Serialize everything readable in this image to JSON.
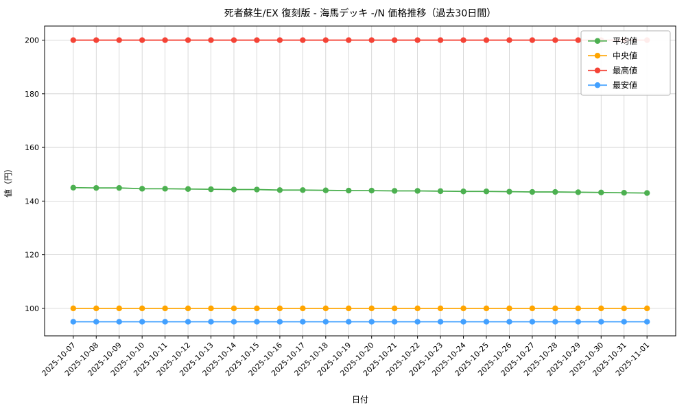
{
  "chart_data": {
    "type": "line",
    "title": "死者蘇生/EX 復刻版 - 海馬デッキ -/N 価格推移（過去30日間）",
    "xlabel": "日付",
    "ylabel": "値（円）",
    "x": [
      "2025-10-07",
      "2025-10-08",
      "2025-10-09",
      "2025-10-10",
      "2025-10-11",
      "2025-10-12",
      "2025-10-13",
      "2025-10-14",
      "2025-10-15",
      "2025-10-16",
      "2025-10-17",
      "2025-10-18",
      "2025-10-19",
      "2025-10-20",
      "2025-10-21",
      "2025-10-22",
      "2025-10-23",
      "2025-10-24",
      "2025-10-25",
      "2025-10-26",
      "2025-10-27",
      "2025-10-28",
      "2025-10-29",
      "2025-10-30",
      "2025-10-31",
      "2025-11-01"
    ],
    "series": [
      {
        "name": "平均値",
        "color": "#4cb050",
        "values": [
          145.0,
          144.9,
          144.9,
          144.6,
          144.6,
          144.5,
          144.4,
          144.3,
          144.3,
          144.1,
          144.1,
          144.0,
          143.9,
          143.9,
          143.8,
          143.8,
          143.7,
          143.6,
          143.6,
          143.5,
          143.4,
          143.4,
          143.3,
          143.2,
          143.1,
          143.0
        ]
      },
      {
        "name": "中央値",
        "color": "#ffa500",
        "values": [
          100,
          100,
          100,
          100,
          100,
          100,
          100,
          100,
          100,
          100,
          100,
          100,
          100,
          100,
          100,
          100,
          100,
          100,
          100,
          100,
          100,
          100,
          100,
          100,
          100,
          100
        ]
      },
      {
        "name": "最高値",
        "color": "#f44336",
        "values": [
          200,
          200,
          200,
          200,
          200,
          200,
          200,
          200,
          200,
          200,
          200,
          200,
          200,
          200,
          200,
          200,
          200,
          200,
          200,
          200,
          200,
          200,
          200,
          200,
          200,
          200
        ]
      },
      {
        "name": "最安値",
        "color": "#42a0ff",
        "values": [
          95,
          95,
          95,
          95,
          95,
          95,
          95,
          95,
          95,
          95,
          95,
          95,
          95,
          95,
          95,
          95,
          95,
          95,
          95,
          95,
          95,
          95,
          95,
          95,
          95,
          95
        ]
      }
    ],
    "ylim": [
      89.75,
      205.25
    ],
    "yticks": [
      100,
      120,
      140,
      160,
      180,
      200
    ],
    "grid": true,
    "legend_position": "upper right"
  }
}
